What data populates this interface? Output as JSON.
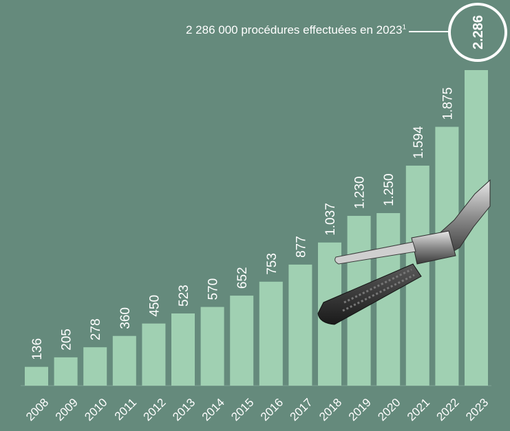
{
  "callout": {
    "text": "2 286 000 procédures effectuées en 2023",
    "footnote_mark": "1"
  },
  "chart_data": {
    "type": "bar",
    "categories": [
      "2008",
      "2009",
      "2010",
      "2011",
      "2012",
      "2013",
      "2014",
      "2015",
      "2016",
      "2017",
      "2018",
      "2019",
      "2020",
      "2021",
      "2022",
      "2023"
    ],
    "values": [
      136,
      205,
      278,
      360,
      450,
      523,
      570,
      652,
      753,
      877,
      1037,
      1230,
      1250,
      1594,
      1875,
      2286
    ],
    "value_labels": [
      "136",
      "205",
      "278",
      "360",
      "450",
      "523",
      "570",
      "652",
      "753",
      "877",
      "1.037",
      "1.230",
      "1.250",
      "1.594",
      "1.875",
      "2.286"
    ],
    "highlight_index": 15,
    "ylim": [
      0,
      2286
    ],
    "grid": false,
    "legend": "none",
    "colors": {
      "background": "#658a7c",
      "bar": "#a0d0b2",
      "text": "#ffffff"
    }
  }
}
